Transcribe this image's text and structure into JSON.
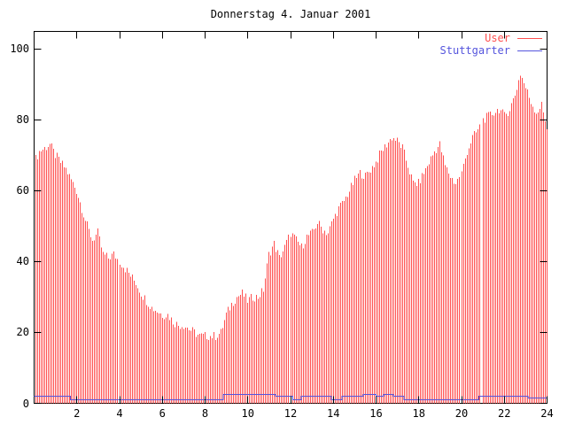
{
  "title": "Donnerstag 4. Januar 2001",
  "legend": {
    "items": [
      {
        "label": "User",
        "color": "#ff5050"
      },
      {
        "label": "Stuttgarter",
        "color": "#5555dd"
      }
    ]
  },
  "chart_data": {
    "type": "bar",
    "title": "Donnerstag 4. Januar 2001",
    "xlabel": "",
    "ylabel": "",
    "xlim": [
      0,
      24
    ],
    "ylim": [
      0,
      105
    ],
    "grid": false,
    "legend_position": "top-right",
    "axes": {
      "x_ticks": [
        2,
        4,
        6,
        8,
        10,
        12,
        14,
        16,
        18,
        20,
        22,
        24
      ],
      "y_ticks": [
        0,
        20,
        40,
        60,
        80,
        100
      ]
    },
    "series": [
      {
        "name": "User",
        "style": "impulses",
        "color": "#ff5050",
        "interval_minutes": 5,
        "envelope_step_hours": 0.25,
        "envelope_values": [
          68,
          71,
          72,
          73,
          70,
          68,
          66,
          63,
          60,
          55,
          50,
          46,
          48,
          42,
          41,
          42,
          40,
          38,
          36,
          34,
          31,
          29,
          27,
          26,
          25,
          25,
          23,
          22,
          22,
          21,
          20,
          19,
          19,
          19,
          19,
          20,
          25,
          28,
          30,
          31,
          29,
          30,
          30,
          32,
          42,
          45,
          41,
          44,
          48,
          46,
          44,
          47,
          48,
          51,
          49,
          48,
          52,
          55,
          57,
          60,
          63,
          65,
          64,
          66,
          68,
          71,
          73,
          75,
          74,
          72,
          67,
          62,
          62,
          65,
          68,
          71,
          73,
          67,
          64,
          62,
          65,
          71,
          75,
          77,
          80,
          81,
          82,
          83,
          81,
          83,
          87,
          93,
          89,
          85,
          82,
          84,
          78
        ],
        "gap_hours": [
          20.92
        ]
      },
      {
        "name": "Stuttgarter",
        "style": "steps",
        "color": "#5555dd",
        "segments": [
          [
            0,
            1.7,
            2
          ],
          [
            1.7,
            8.85,
            1
          ],
          [
            8.85,
            11.3,
            2.5
          ],
          [
            11.3,
            12.1,
            2
          ],
          [
            12.1,
            12.5,
            1
          ],
          [
            12.5,
            13.9,
            2
          ],
          [
            13.9,
            14.4,
            1
          ],
          [
            14.4,
            15.4,
            2
          ],
          [
            15.4,
            16.0,
            2.5
          ],
          [
            16.0,
            16.35,
            2
          ],
          [
            16.35,
            16.8,
            2.5
          ],
          [
            16.8,
            17.3,
            2
          ],
          [
            17.3,
            20.8,
            1
          ],
          [
            20.8,
            23.1,
            2
          ],
          [
            23.1,
            24,
            1.5
          ]
        ]
      }
    ]
  }
}
